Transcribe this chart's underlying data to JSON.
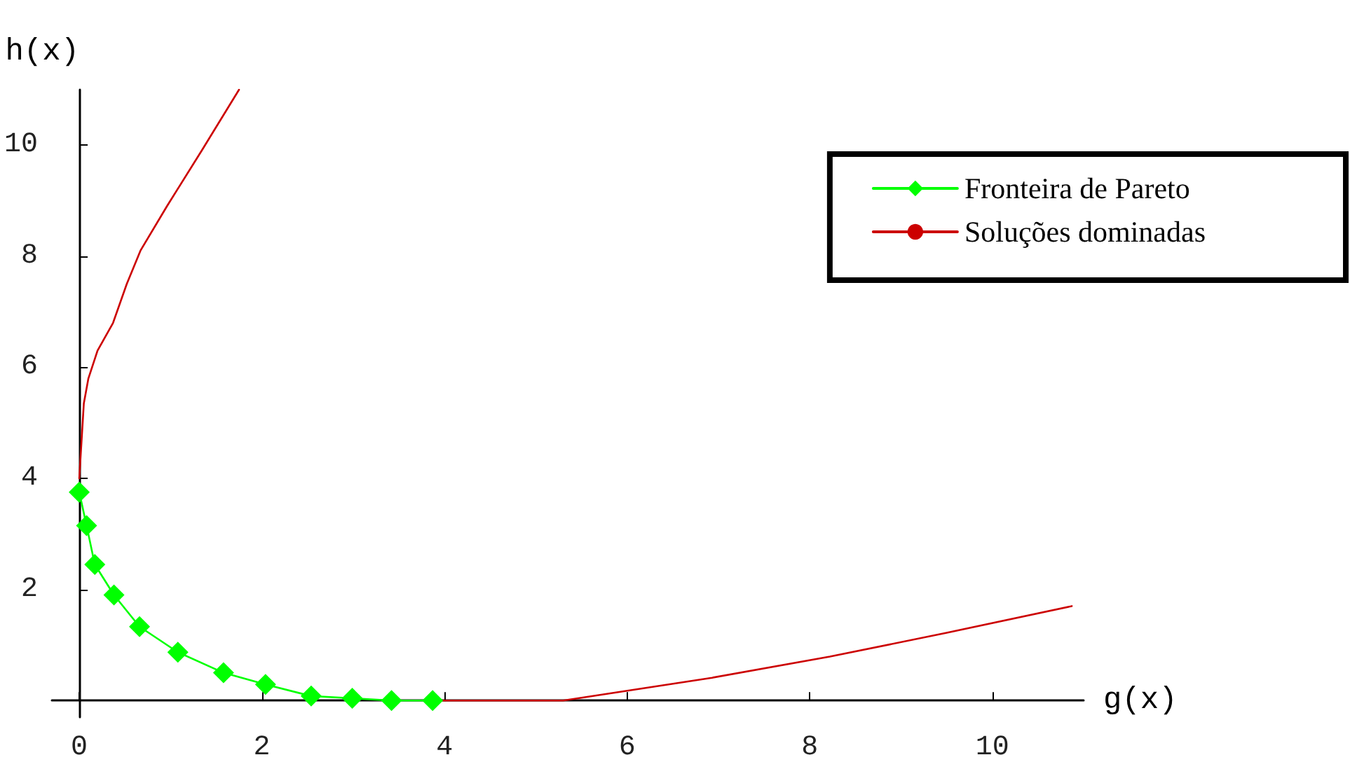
{
  "chart_data": {
    "type": "line",
    "xlabel": "g(x)",
    "ylabel": "h(x)",
    "series": [
      {
        "name": "Fronteira de Pareto",
        "color": "#00ff00",
        "marker": "diamond",
        "x": [
          0,
          0.08,
          0.17,
          0.38,
          0.66,
          1.08,
          1.58,
          2.04,
          2.54,
          2.99,
          3.42,
          3.87
        ],
        "values": [
          3.75,
          3.15,
          2.45,
          1.9,
          1.33,
          0.87,
          0.5,
          0.29,
          0.08,
          0.04,
          0,
          0
        ]
      },
      {
        "name": "Soluções dominadas",
        "color": "#cc0000",
        "marker": "none",
        "x": [
          0,
          0.05,
          0.1,
          0.2,
          0.37,
          0.52,
          0.67,
          0.96,
          1.34,
          1.75,
          2.5,
          3.87,
          5.3,
          6.93,
          8.22,
          9.5,
          10.87
        ],
        "values": [
          4,
          5.35,
          5.8,
          6.3,
          6.8,
          7.5,
          8.1,
          8.9,
          9.9,
          11,
          null,
          0,
          0,
          0.41,
          0.79,
          1.22,
          1.7
        ]
      }
    ],
    "xlim": [
      -0.3,
      11
    ],
    "ylim": [
      -0.3,
      11
    ],
    "xticks": [
      0,
      2,
      4,
      6,
      8,
      10
    ],
    "yticks": [
      2,
      4,
      6,
      8,
      10
    ],
    "grid": false,
    "legend": "top right"
  }
}
